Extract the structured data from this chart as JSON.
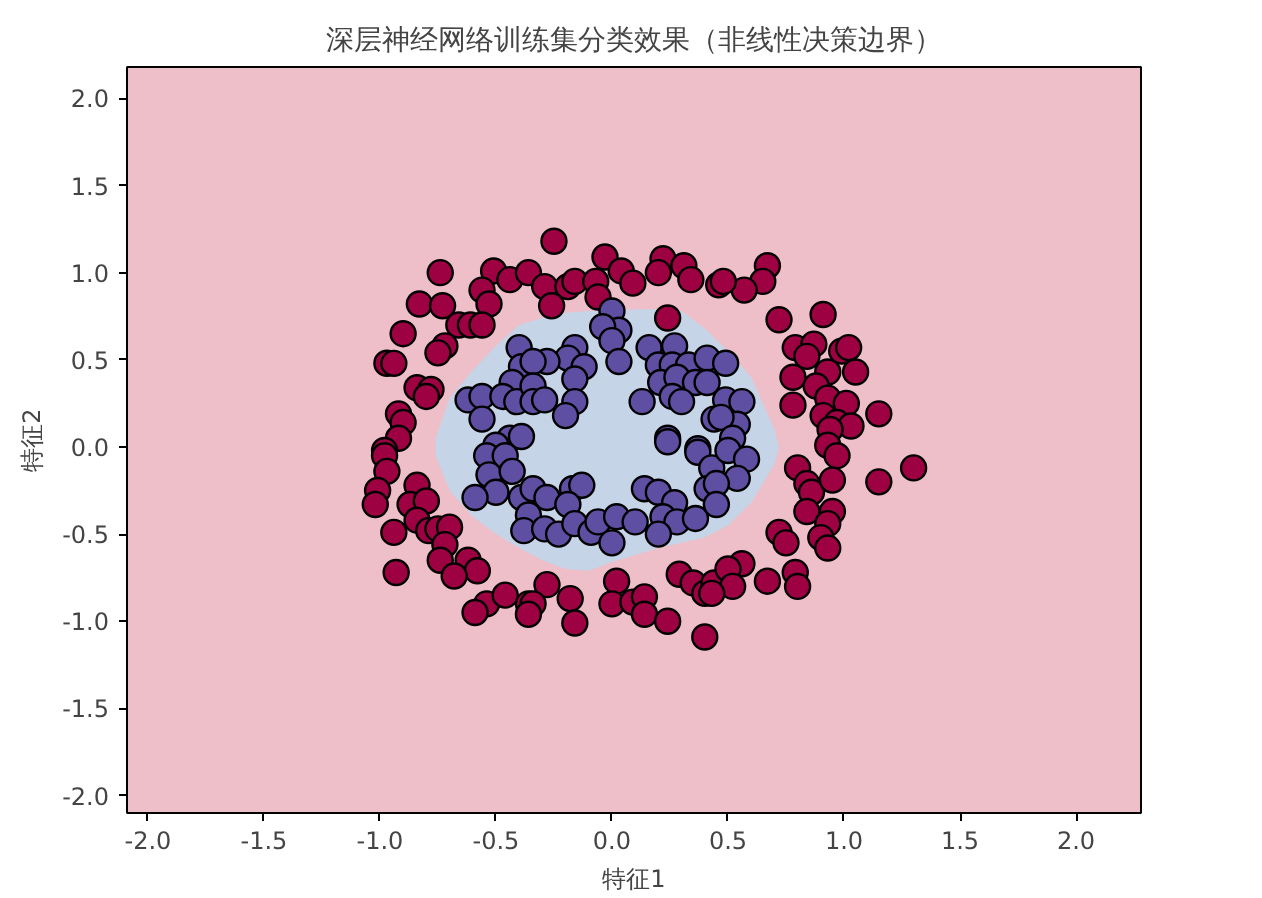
{
  "chart_data": {
    "type": "scatter",
    "title": "深层神经网络训练集分类效果（非线性决策边界）",
    "xlabel": "特征1",
    "ylabel": "特征2",
    "xlim": [
      -2.09,
      2.28
    ],
    "ylim": [
      -2.1,
      2.18
    ],
    "xticks": [
      {
        "value": -2,
        "label": "-2.0"
      },
      {
        "value": -1.5,
        "label": "-1.5"
      },
      {
        "value": -1,
        "label": "-1.0"
      },
      {
        "value": -0.5,
        "label": "-0.5"
      },
      {
        "value": 0,
        "label": "0.0"
      },
      {
        "value": 0.5,
        "label": "0.5"
      },
      {
        "value": 1,
        "label": "1.0"
      },
      {
        "value": 1.5,
        "label": "1.5"
      },
      {
        "value": 2,
        "label": "2.0"
      }
    ],
    "yticks": [
      {
        "value": -2,
        "label": "-2.0"
      },
      {
        "value": -1.5,
        "label": "-1.5"
      },
      {
        "value": -1,
        "label": "-1.0"
      },
      {
        "value": -0.5,
        "label": "-0.5"
      },
      {
        "value": 0,
        "label": "0.0"
      },
      {
        "value": 0.5,
        "label": "0.5"
      },
      {
        "value": 1,
        "label": "1.0"
      },
      {
        "value": 1.5,
        "label": "1.5"
      },
      {
        "value": 2,
        "label": "2.0"
      }
    ],
    "grid": false,
    "series": [
      {
        "type": "area",
        "color": "#c5d4e6",
        "x": [
          -0.76,
          -0.7,
          -0.6,
          -0.5,
          -0.4,
          -0.3,
          -0.2,
          -0.1,
          0,
          0.1,
          0.2,
          0.3,
          0.4,
          0.5,
          0.6,
          0.7,
          0.72
        ],
        "values": [
          0.05,
          0.28,
          0.44,
          0.58,
          0.7,
          0.74,
          0.77,
          0.78,
          0.78,
          0.79,
          0.79,
          0.78,
          0.68,
          0.55,
          0.4,
          0.1,
          0.0
        ]
      },
      {
        "type": "area",
        "color": "#c5d4e6",
        "x": [
          -0.76,
          -0.7,
          -0.6,
          -0.5,
          -0.4,
          -0.3,
          -0.2,
          -0.1,
          0,
          0.1,
          0.2,
          0.3,
          0.4,
          0.5,
          0.6,
          0.7,
          0.72
        ],
        "values": [
          -0.05,
          -0.25,
          -0.4,
          -0.5,
          -0.58,
          -0.65,
          -0.7,
          -0.71,
          -0.66,
          -0.62,
          -0.58,
          -0.55,
          -0.52,
          -0.45,
          -0.32,
          -0.1,
          0.0
        ]
      },
      {
        "marker": "circle",
        "color": "#9e0142",
        "x": [
          -0.74,
          -0.51,
          -0.44,
          -0.56,
          -0.53,
          -0.83,
          -0.73,
          -0.66,
          -0.61,
          -0.56,
          -0.9,
          -0.72,
          -0.75,
          -0.97,
          -0.94,
          -0.84,
          -0.78,
          -0.8,
          -0.92,
          -0.9,
          -0.92,
          -0.98,
          -0.25,
          -0.36,
          -0.29,
          -0.19,
          -0.16,
          -0.26,
          -0.07,
          -0.06,
          -0.03,
          0.04,
          0.09,
          0.22,
          0.2,
          0.31,
          0.34,
          0.24,
          0.46,
          0.67,
          0.65,
          0.57,
          0.48,
          0.72,
          0.91,
          0.79,
          0.87,
          0.84,
          0.99,
          1.02,
          1.05,
          0.93,
          0.78,
          0.88,
          0.93,
          1.01,
          0.78,
          1.15,
          0.91,
          0.97,
          1.03,
          0.94,
          -0.98,
          -0.97,
          -1.01,
          -1.02,
          -0.84,
          -0.87,
          -0.8,
          -0.84,
          -0.94,
          -0.79,
          -0.75,
          -0.7,
          -0.72,
          -0.74,
          -0.62,
          -0.58,
          -0.68,
          -0.93,
          -0.54,
          -0.59,
          -0.46,
          -0.36,
          -0.28,
          -0.34,
          -0.36,
          -0.18,
          -0.16,
          0.02,
          0.0,
          0.09,
          0.14,
          0.14,
          0.24,
          0.29,
          0.35,
          0.4,
          0.44,
          0.4,
          0.93,
          0.97,
          0.8,
          0.84,
          0.86,
          0.95,
          1.15,
          0.84,
          0.95,
          0.93,
          0.72,
          0.75,
          0.9,
          0.93,
          0.56,
          0.5,
          0.52,
          0.43,
          0.67,
          0.79,
          0.8,
          1.3
        ],
        "values": [
          1.0,
          1.01,
          0.96,
          0.9,
          0.82,
          0.82,
          0.81,
          0.7,
          0.7,
          0.7,
          0.65,
          0.58,
          0.54,
          0.48,
          0.48,
          0.34,
          0.33,
          0.29,
          0.19,
          0.14,
          0.05,
          -0.02,
          1.18,
          1.0,
          0.92,
          0.92,
          0.95,
          0.81,
          0.95,
          0.86,
          1.09,
          1.01,
          0.94,
          1.08,
          1.0,
          1.04,
          0.96,
          0.74,
          0.93,
          1.04,
          0.95,
          0.9,
          0.95,
          0.73,
          0.76,
          0.57,
          0.59,
          0.52,
          0.55,
          0.57,
          0.43,
          0.43,
          0.4,
          0.35,
          0.28,
          0.25,
          0.24,
          0.19,
          0.18,
          0.14,
          0.12,
          0.1,
          -0.05,
          -0.14,
          -0.25,
          -0.33,
          -0.22,
          -0.33,
          -0.31,
          -0.42,
          -0.49,
          -0.48,
          -0.47,
          -0.46,
          -0.56,
          -0.65,
          -0.65,
          -0.71,
          -0.74,
          -0.72,
          -0.9,
          -0.95,
          -0.85,
          -0.9,
          -0.79,
          -0.9,
          -0.96,
          -0.87,
          -1.01,
          -0.77,
          -0.9,
          -0.89,
          -0.86,
          -0.96,
          -1.0,
          -0.73,
          -0.78,
          -0.84,
          -0.78,
          -1.09,
          0.01,
          -0.05,
          -0.12,
          -0.21,
          -0.26,
          -0.19,
          -0.2,
          -0.37,
          -0.37,
          -0.44,
          -0.49,
          -0.55,
          -0.52,
          -0.58,
          -0.67,
          -0.7,
          -0.8,
          -0.84,
          -0.77,
          -0.72,
          -0.8,
          -0.12
        ]
      },
      {
        "marker": "circle",
        "color": "#5e4fa2",
        "x": [
          -0.4,
          -0.39,
          -0.43,
          -0.62,
          -0.56,
          -0.47,
          -0.41,
          -0.56,
          -0.44,
          -0.5,
          0.0,
          0.03,
          -0.04,
          0.0,
          -0.16,
          -0.19,
          -0.28,
          -0.34,
          -0.12,
          -0.16,
          0.03,
          0.16,
          0.27,
          0.2,
          0.26,
          0.33,
          0.21,
          0.28,
          0.36,
          0.26,
          0.3,
          0.13,
          -0.34,
          -0.34,
          -0.29,
          -0.16,
          -0.2,
          0.24,
          0.37,
          -0.39,
          0.44,
          0.41,
          0.49,
          0.41,
          0.49,
          0.56,
          0.54,
          0.47,
          0.52,
          -0.54,
          -0.46,
          -0.53,
          -0.43,
          -0.5,
          -0.39,
          -0.36,
          -0.59,
          -0.34,
          -0.28,
          -0.17,
          -0.13,
          -0.19,
          -0.38,
          -0.29,
          -0.23,
          -0.16,
          -0.09,
          -0.06,
          0.02,
          0.0,
          0.1,
          0.14,
          0.2,
          0.27,
          0.22,
          0.28,
          0.36,
          0.2,
          0.37,
          0.43,
          0.41,
          0.24,
          0.5,
          0.58,
          0.54,
          0.45,
          0.45
        ],
        "values": [
          0.57,
          0.46,
          0.37,
          0.27,
          0.29,
          0.29,
          0.26,
          0.16,
          0.05,
          0.01,
          0.78,
          0.67,
          0.69,
          0.61,
          0.57,
          0.51,
          0.49,
          0.49,
          0.46,
          0.39,
          0.49,
          0.57,
          0.58,
          0.47,
          0.47,
          0.47,
          0.37,
          0.4,
          0.37,
          0.29,
          0.26,
          0.26,
          0.35,
          0.26,
          0.27,
          0.26,
          0.18,
          0.05,
          -0.01,
          0.06,
          0.16,
          0.51,
          0.48,
          0.37,
          0.27,
          0.26,
          0.13,
          0.17,
          0.05,
          -0.05,
          -0.05,
          -0.16,
          -0.14,
          -0.26,
          -0.29,
          -0.39,
          -0.29,
          -0.24,
          -0.29,
          -0.24,
          -0.22,
          -0.33,
          -0.48,
          -0.47,
          -0.5,
          -0.44,
          -0.49,
          -0.43,
          -0.4,
          -0.55,
          -0.43,
          -0.24,
          -0.26,
          -0.32,
          -0.4,
          -0.43,
          -0.41,
          -0.5,
          -0.03,
          -0.12,
          -0.24,
          0.03,
          -0.02,
          -0.07,
          -0.18,
          -0.21,
          -0.33
        ]
      }
    ]
  }
}
